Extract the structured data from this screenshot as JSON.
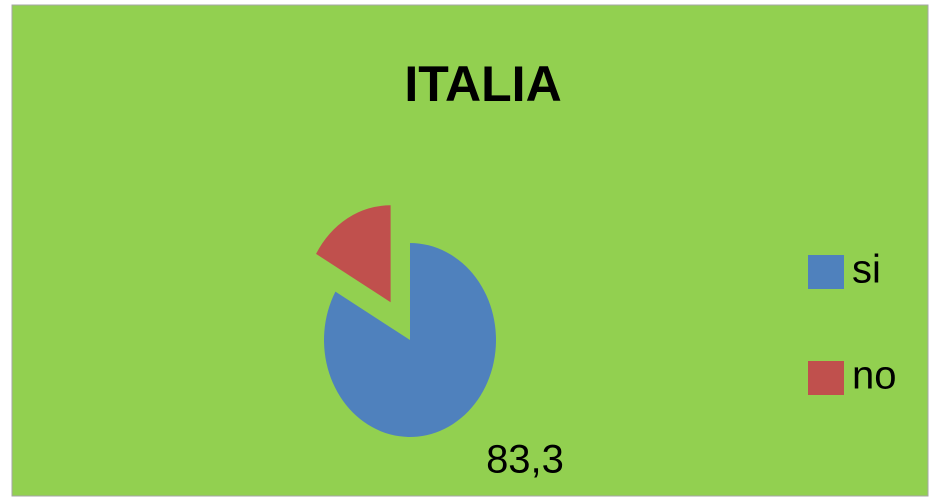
{
  "chart_data": {
    "type": "pie",
    "title": "ITALIA",
    "categories": [
      "si",
      "no"
    ],
    "values": [
      83.3,
      16.7
    ],
    "value_labels": [
      "83,3",
      null
    ],
    "colors": [
      "#4f81bd",
      "#c0504d"
    ],
    "legend": "right"
  }
}
